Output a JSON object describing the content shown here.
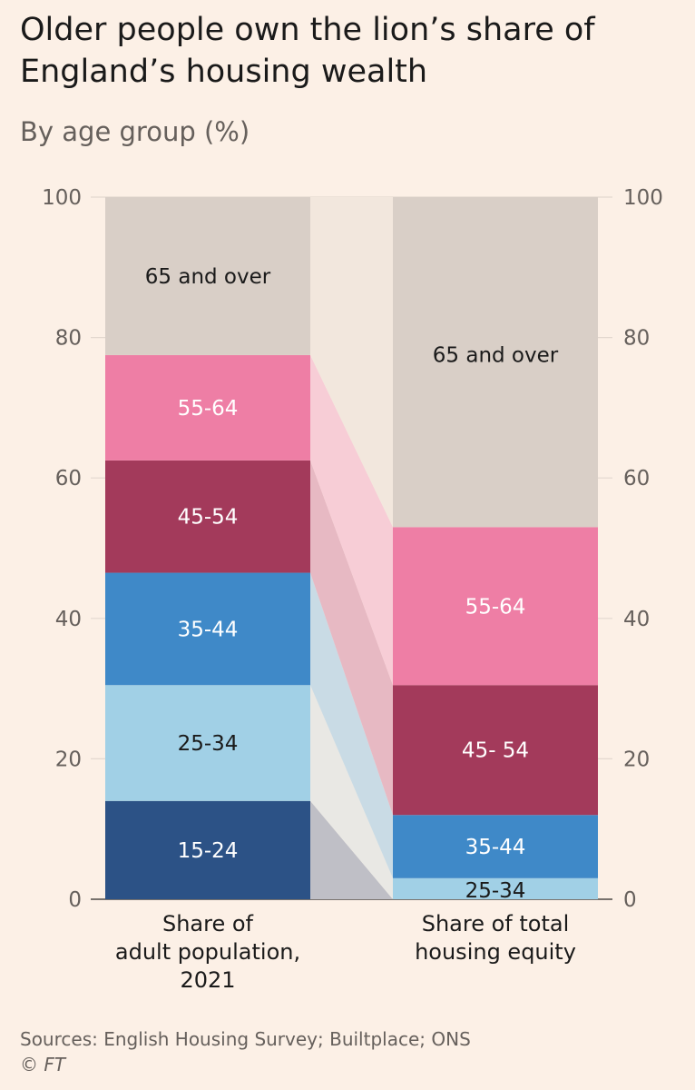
{
  "title": "Older people own the lion’s share of England’s housing wealth",
  "subtitle": "By age group (%)",
  "source": "Sources: English Housing Survey; Builtplace; ONS",
  "credit": "© FT",
  "chart_data": {
    "type": "bar",
    "stacked": true,
    "ylim": [
      0,
      100
    ],
    "yticks": [
      0,
      20,
      40,
      60,
      80,
      100
    ],
    "grid": true,
    "categories": [
      [
        "Share of",
        "adult population,",
        "2021"
      ],
      [
        "Share of total",
        "housing equity"
      ]
    ],
    "series": [
      {
        "name": "15-24",
        "color": "#2c5286",
        "labelColor": "#ffffff",
        "values": [
          14,
          0
        ],
        "labels": [
          "15-24",
          ""
        ]
      },
      {
        "name": "25-34",
        "color": "#a1d0e6",
        "labelColor": "#1a1a1a",
        "values": [
          16.5,
          3
        ],
        "labels": [
          "25-34",
          "25-34"
        ]
      },
      {
        "name": "35-44",
        "color": "#3f89c8",
        "labelColor": "#ffffff",
        "values": [
          16,
          9
        ],
        "labels": [
          "35-44",
          "35-44"
        ]
      },
      {
        "name": "45-54",
        "color": "#a33a5b",
        "labelColor": "#ffffff",
        "values": [
          16,
          18.5
        ],
        "labels": [
          "45-54",
          "45- 54"
        ]
      },
      {
        "name": "55-64",
        "color": "#ee7ea5",
        "labelColor": "#ffffff",
        "values": [
          15,
          22.5
        ],
        "labels": [
          "55-64",
          "55-64"
        ]
      },
      {
        "name": "65 and over",
        "color": "#d9cfc7",
        "labelColor": "#1a1a1a",
        "values": [
          22.5,
          47
        ],
        "labels": [
          "65 and over",
          "65 and over"
        ]
      }
    ],
    "band_colors": [
      "#bfbfc6",
      "#e9e8e4",
      "#c9dbe5",
      "#e7b9c3",
      "#f7cdd6",
      "#f2e7dd"
    ]
  }
}
